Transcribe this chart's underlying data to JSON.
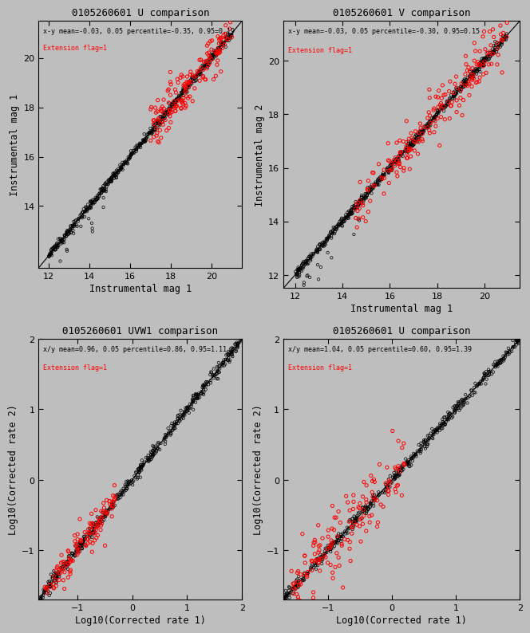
{
  "background_color": "#bebebe",
  "panels": [
    {
      "title": "0105260601 U comparison",
      "xlabel": "Instrumental mag 1",
      "ylabel": "Instrumental mag 1",
      "annotation1": "x-y mean=-0.03, 0.05 percentile=-0.35, 0.95=0.19",
      "annotation2": "Extension flag=1",
      "xlim": [
        11.5,
        21.5
      ],
      "ylim": [
        11.5,
        21.5
      ],
      "xticks": [
        12,
        14,
        16,
        18,
        20
      ],
      "yticks": [
        14,
        16,
        18,
        20
      ],
      "type": "mag",
      "red_xrange": [
        17.0,
        21.0
      ],
      "red_spread": 0.45,
      "black_n": 550,
      "red_n": 160
    },
    {
      "title": "0105260601 V comparison",
      "xlabel": "Instrumental mag 1",
      "ylabel": "Instrumental mag 2",
      "annotation1": "x-y mean=-0.03, 0.05 percentile=-0.30, 0.95=0.15",
      "annotation2": "Extension flag=1",
      "xlim": [
        11.5,
        21.5
      ],
      "ylim": [
        11.5,
        21.5
      ],
      "xticks": [
        12,
        14,
        16,
        18,
        20
      ],
      "yticks": [
        12,
        14,
        16,
        18,
        20
      ],
      "type": "mag",
      "red_xrange": [
        14.5,
        21.0
      ],
      "red_spread": 0.45,
      "black_n": 600,
      "red_n": 200
    },
    {
      "title": "0105260601 UVW1 comparison",
      "xlabel": "Log10(Corrected rate 1)",
      "ylabel": "Log10(Corrected rate 2)",
      "annotation1": "x/y mean=0.96, 0.05 percentile=0.86, 0.95=1.11",
      "annotation2": "Extension flag=1",
      "xlim": [
        -1.7,
        2.0
      ],
      "ylim": [
        -1.7,
        2.0
      ],
      "xticks": [
        -1,
        0,
        1,
        2
      ],
      "yticks": [
        -1,
        0,
        1,
        2
      ],
      "type": "rate",
      "red_xrange": [
        -1.6,
        -0.3
      ],
      "red_spread": 0.12,
      "black_n": 500,
      "red_n": 120
    },
    {
      "title": "0105260601 U comparison",
      "xlabel": "Log10(Corrected rate 1)",
      "ylabel": "Log10(Corrected rate 2)",
      "annotation1": "x/y mean=1.04, 0.05 percentile=0.60, 0.95=1.39",
      "annotation2": "Extension flag=1",
      "xlim": [
        -1.7,
        2.0
      ],
      "ylim": [
        -1.7,
        2.0
      ],
      "xticks": [
        -1,
        0,
        1,
        2
      ],
      "yticks": [
        -1,
        0,
        1,
        2
      ],
      "type": "rate",
      "red_xrange": [
        -1.6,
        0.2
      ],
      "red_spread": 0.25,
      "black_n": 500,
      "red_n": 160
    }
  ],
  "text_color_black": "#000000",
  "text_color_red": "#ff0000",
  "marker_color_black": "#000000",
  "marker_color_red": "#ff0000",
  "font_family": "monospace"
}
